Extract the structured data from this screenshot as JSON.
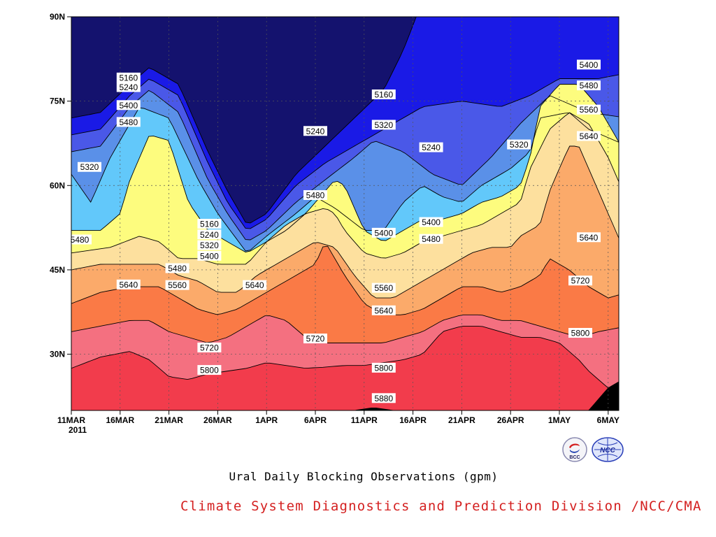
{
  "chart_data": {
    "type": "contour",
    "title": "Ural Daily Blocking Observations (gpm)",
    "xlabel": "",
    "ylabel": "",
    "x_ticks": [
      "11MAR",
      "16MAR",
      "21MAR",
      "26MAR",
      "1APR",
      "6APR",
      "11APR",
      "16APR",
      "21APR",
      "26APR",
      "1MAY",
      "6MAY"
    ],
    "x_year_label": "2011",
    "y_ticks": [
      "90N",
      "75N",
      "60N",
      "45N",
      "30N"
    ],
    "ylim_deg_lat": [
      20,
      90
    ],
    "grid": true,
    "levels": [
      5160,
      5240,
      5320,
      5400,
      5480,
      5560,
      5640,
      5720,
      5800,
      5880
    ],
    "level_colors": [
      "#14126e",
      "#1a1ae6",
      "#4a58e8",
      "#5a90e8",
      "#62c8fa",
      "#fdfc7e",
      "#fde09e",
      "#fbaa6a",
      "#fa7a46",
      "#f47080",
      "#f23c4c"
    ],
    "contour_labels": [
      {
        "text": "5160",
        "date": "16MAR",
        "lat": 79.2
      },
      {
        "text": "5240",
        "date": "16MAR",
        "lat": 77.5
      },
      {
        "text": "5400",
        "date": "16MAR",
        "lat": 74.3
      },
      {
        "text": "5480",
        "date": "16MAR",
        "lat": 71.3
      },
      {
        "text": "5320",
        "date": "11MAR",
        "lat": 63.3
      },
      {
        "text": "5480",
        "date": "11MAR",
        "lat": 50.4
      },
      {
        "text": "5160",
        "date": "26MAR",
        "lat": 53.2
      },
      {
        "text": "5240",
        "date": "26MAR",
        "lat": 51.3
      },
      {
        "text": "5320",
        "date": "26MAR",
        "lat": 49.4
      },
      {
        "text": "5400",
        "date": "26MAR",
        "lat": 47.5
      },
      {
        "text": "5480",
        "date": "21MAR",
        "lat": 45.3
      },
      {
        "text": "5560",
        "date": "21MAR",
        "lat": 42.3
      },
      {
        "text": "5640",
        "date": "16MAR",
        "lat": 42.4
      },
      {
        "text": "5640",
        "date": "1APR",
        "lat": 42.3
      },
      {
        "text": "5480",
        "date": "6APR",
        "lat": 58.3
      },
      {
        "text": "5240",
        "date": "6APR",
        "lat": 69.7
      },
      {
        "text": "5160",
        "date": "11APR",
        "lat": 76.2
      },
      {
        "text": "5320",
        "date": "11APR",
        "lat": 70.8
      },
      {
        "text": "5240",
        "date": "16APR",
        "lat": 66.8
      },
      {
        "text": "5400",
        "date": "11APR",
        "lat": 51.6
      },
      {
        "text": "5560",
        "date": "11APR",
        "lat": 41.8
      },
      {
        "text": "5640",
        "date": "11APR",
        "lat": 37.8
      },
      {
        "text": "5720",
        "date": "6APR",
        "lat": 32.8
      },
      {
        "text": "5800",
        "date": "11APR",
        "lat": 27.6
      },
      {
        "text": "5880",
        "date": "11APR",
        "lat": 22.2
      },
      {
        "text": "5800",
        "date": "26MAR",
        "lat": 27.2
      },
      {
        "text": "5720",
        "date": "26MAR",
        "lat": 31.2
      },
      {
        "text": "5400",
        "date": "16APR",
        "lat": 53.5
      },
      {
        "text": "5480",
        "date": "16APR",
        "lat": 50.5
      },
      {
        "text": "5320",
        "date": "26APR",
        "lat": 67.3
      },
      {
        "text": "5640",
        "date": "1MAY",
        "lat": 50.8
      },
      {
        "text": "5720",
        "date": "1MAY",
        "lat": 43.1
      },
      {
        "text": "5800",
        "date": "1MAY",
        "lat": 33.8
      },
      {
        "text": "5400",
        "date": "1MAY",
        "lat": 81.5
      },
      {
        "text": "5480",
        "date": "1MAY",
        "lat": 77.8
      },
      {
        "text": "5560",
        "date": "1MAY",
        "lat": 73.5
      },
      {
        "text": "5640",
        "date": "1MAY",
        "lat": 68.8
      }
    ]
  },
  "title_text": "Ural Daily Blocking Observations (gpm)",
  "footer": {
    "organization": "Climate System Diagnostics and Prediction Division /NCC/CMA"
  },
  "logos": [
    {
      "icon": "bcc-logo-icon",
      "text": "BCC"
    },
    {
      "icon": "ncc-logo-icon",
      "text": "NCC"
    }
  ]
}
